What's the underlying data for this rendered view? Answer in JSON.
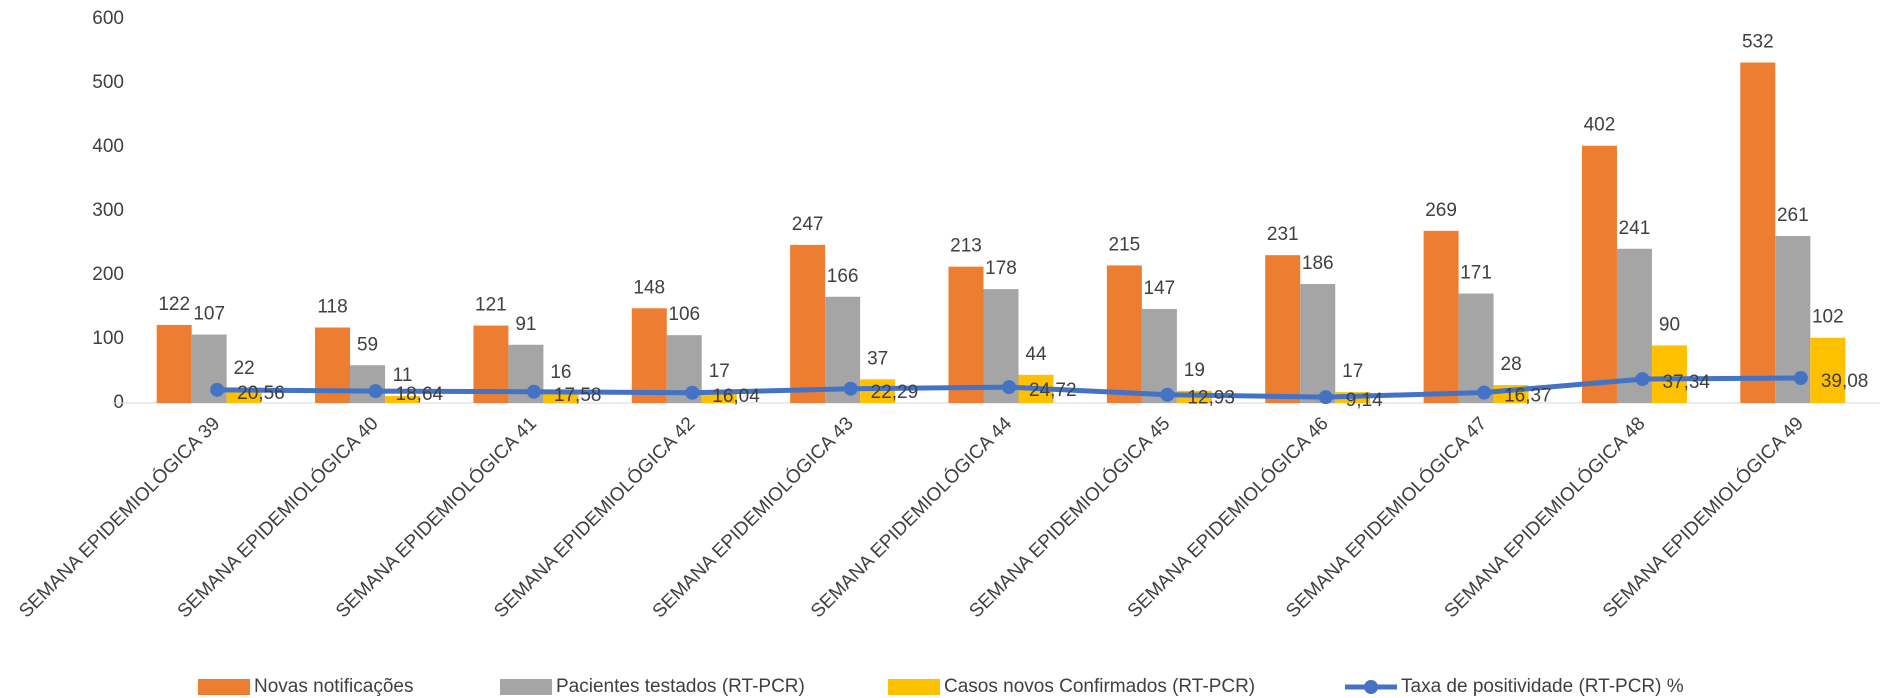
{
  "chart_data": {
    "type": "bar",
    "categories": [
      "SEMANA EPIDEMIOLÓGICA 39",
      "SEMANA EPIDEMIOLÓGICA 40",
      "SEMANA EPIDEMIOLÓGICA 41",
      "SEMANA EPIDEMIOLÓGICA 42",
      "SEMANA EPIDEMIOLÓGICA 43",
      "SEMANA EPIDEMIOLÓGICA 44",
      "SEMANA EPIDEMIOLÓGICA 45",
      "SEMANA EPIDEMIOLÓGICA 46",
      "SEMANA EPIDEMIOLÓGICA 47",
      "SEMANA EPIDEMIOLÓGICA 48",
      "SEMANA EPIDEMIOLÓGICA 49"
    ],
    "series": [
      {
        "name": "Novas notificações",
        "color": "#ed7d31",
        "type": "bar",
        "values": [
          122,
          118,
          121,
          148,
          247,
          213,
          215,
          231,
          269,
          402,
          532
        ]
      },
      {
        "name": "Pacientes testados (RT-PCR)",
        "color": "#a5a5a5",
        "type": "bar",
        "values": [
          107,
          59,
          91,
          106,
          166,
          178,
          147,
          186,
          171,
          241,
          261
        ]
      },
      {
        "name": "Casos novos Confirmados (RT-PCR)",
        "color": "#ffc000",
        "type": "bar",
        "values": [
          22,
          11,
          16,
          17,
          37,
          44,
          19,
          17,
          28,
          90,
          102
        ]
      },
      {
        "name": "Taxa de positividade (RT-PCR) %",
        "color": "#4472c4",
        "type": "line",
        "values": [
          20.56,
          18.64,
          17.58,
          16.04,
          22.29,
          24.72,
          12.93,
          9.14,
          16.37,
          37.34,
          39.08
        ],
        "value_labels": [
          "20,56",
          "18,64",
          "17,58",
          "16,04",
          "22,29",
          "24,72",
          "12,93",
          "9,14",
          "16,37",
          "37,34",
          "39,08"
        ]
      }
    ],
    "ylim": [
      0,
      600
    ],
    "yticks": [
      0,
      100,
      200,
      300,
      400,
      500,
      600
    ],
    "grid": false,
    "legend": "bottom"
  }
}
